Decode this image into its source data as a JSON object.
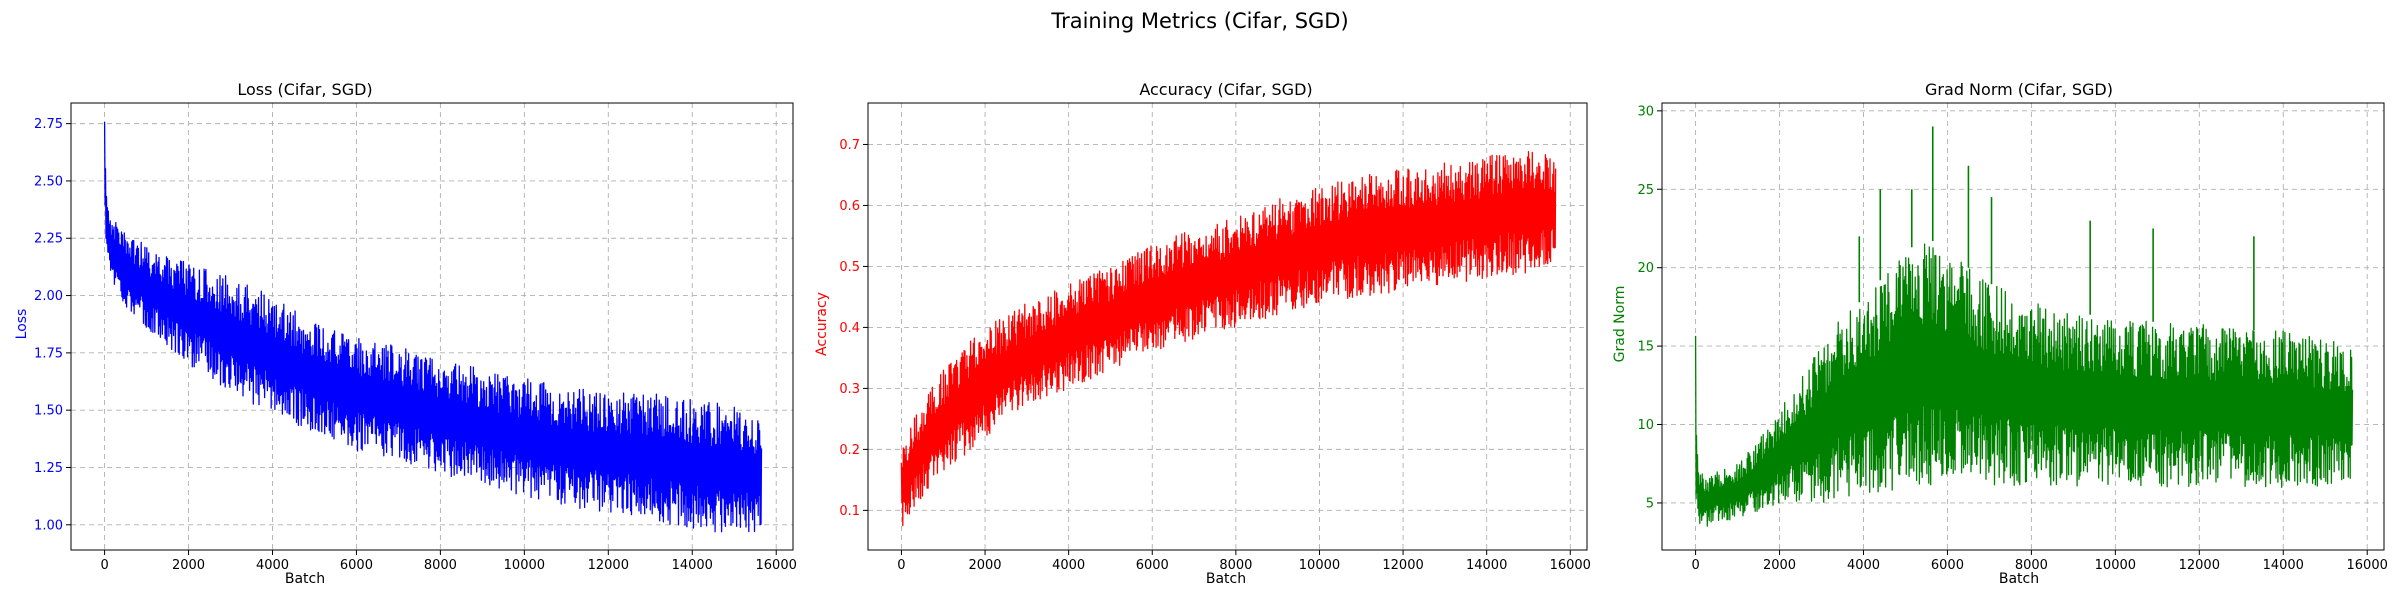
{
  "figure": {
    "suptitle": "Training Metrics (Cifar, SGD)"
  },
  "chart_data": [
    {
      "type": "line",
      "title": "Loss (Cifar, SGD)",
      "xlabel": "Batch",
      "ylabel": "Loss",
      "color": "#0000ff",
      "grid": true,
      "xlim": [
        -800,
        16400
      ],
      "ylim": [
        0.89,
        2.84
      ],
      "xticks": [
        0,
        2000,
        4000,
        6000,
        8000,
        10000,
        12000,
        14000,
        16000
      ],
      "xtick_labels": [
        "0",
        "2000",
        "4000",
        "6000",
        "8000",
        "10000",
        "12000",
        "14000",
        "16000"
      ],
      "yticks": [
        1.0,
        1.25,
        1.5,
        1.75,
        2.0,
        2.25,
        2.5,
        2.75
      ],
      "ytick_labels": [
        "1.00",
        "1.25",
        "1.50",
        "1.75",
        "2.00",
        "2.25",
        "2.50",
        "2.75"
      ],
      "series": [
        {
          "x": [
            0,
            30,
            100,
            200,
            500,
            1000,
            1500,
            2000,
            3000,
            4000,
            5000,
            6000,
            7000,
            8000,
            9000,
            10000,
            11000,
            12000,
            13000,
            14000,
            15000,
            15650
          ],
          "hi": [
            2.8,
            2.55,
            2.35,
            2.33,
            2.28,
            2.22,
            2.17,
            2.15,
            2.08,
            2.0,
            1.88,
            1.82,
            1.78,
            1.72,
            1.68,
            1.64,
            1.6,
            1.58,
            1.58,
            1.55,
            1.52,
            1.45
          ],
          "lo": [
            2.3,
            2.22,
            2.15,
            2.05,
            1.95,
            1.85,
            1.78,
            1.7,
            1.58,
            1.48,
            1.4,
            1.32,
            1.28,
            1.22,
            1.18,
            1.12,
            1.08,
            1.05,
            1.02,
            0.98,
            0.96,
            0.96
          ]
        }
      ]
    },
    {
      "type": "line",
      "title": "Accuracy (Cifar, SGD)",
      "xlabel": "Batch",
      "ylabel": "Accuracy",
      "color": "#ff0000",
      "grid": true,
      "xlim": [
        -800,
        16400
      ],
      "ylim": [
        0.035,
        0.768
      ],
      "xticks": [
        0,
        2000,
        4000,
        6000,
        8000,
        10000,
        12000,
        14000,
        16000
      ],
      "xtick_labels": [
        "0",
        "2000",
        "4000",
        "6000",
        "8000",
        "10000",
        "12000",
        "14000",
        "16000"
      ],
      "yticks": [
        0.1,
        0.2,
        0.3,
        0.4,
        0.5,
        0.6,
        0.7
      ],
      "ytick_labels": [
        "0.1",
        "0.2",
        "0.3",
        "0.4",
        "0.5",
        "0.6",
        "0.7"
      ],
      "series": [
        {
          "x": [
            0,
            100,
            300,
            500,
            1000,
            1500,
            2000,
            3000,
            4000,
            5000,
            6000,
            7000,
            8000,
            9000,
            10000,
            11000,
            12000,
            13000,
            14000,
            15000,
            15650
          ],
          "hi": [
            0.19,
            0.22,
            0.25,
            0.28,
            0.33,
            0.37,
            0.4,
            0.44,
            0.47,
            0.5,
            0.54,
            0.56,
            0.58,
            0.61,
            0.63,
            0.65,
            0.66,
            0.67,
            0.68,
            0.7,
            0.68
          ],
          "lo": [
            0.07,
            0.08,
            0.1,
            0.12,
            0.16,
            0.19,
            0.22,
            0.27,
            0.3,
            0.33,
            0.36,
            0.38,
            0.4,
            0.42,
            0.44,
            0.45,
            0.46,
            0.47,
            0.48,
            0.49,
            0.5
          ]
        }
      ]
    },
    {
      "type": "line",
      "title": "Grad Norm (Cifar, SGD)",
      "xlabel": "Batch",
      "ylabel": "Grad Norm",
      "color": "#008000",
      "grid": true,
      "xlim": [
        -800,
        16400
      ],
      "ylim": [
        2.0,
        30.5
      ],
      "xticks": [
        0,
        2000,
        4000,
        6000,
        8000,
        10000,
        12000,
        14000,
        16000
      ],
      "xtick_labels": [
        "0",
        "2000",
        "4000",
        "6000",
        "8000",
        "10000",
        "12000",
        "14000",
        "16000"
      ],
      "yticks": [
        5,
        10,
        15,
        20,
        25,
        30
      ],
      "ytick_labels": [
        "5",
        "10",
        "15",
        "20",
        "25",
        "30"
      ],
      "series": [
        {
          "x": [
            0,
            30,
            100,
            300,
            500,
            1000,
            1500,
            2000,
            2500,
            3000,
            3500,
            4000,
            4500,
            5000,
            5500,
            6000,
            7000,
            8000,
            9000,
            10000,
            11000,
            12000,
            13000,
            14000,
            15000,
            15650
          ],
          "hi": [
            17.0,
            9.0,
            7.0,
            6.5,
            7.0,
            7.5,
            9.0,
            11.0,
            13.0,
            15.0,
            17.0,
            18.0,
            19.5,
            21.0,
            22.0,
            21.0,
            19.0,
            18.0,
            17.0,
            17.0,
            16.5,
            16.5,
            16.0,
            16.0,
            15.5,
            15.0
          ],
          "lo": [
            5.0,
            4.5,
            3.5,
            3.5,
            3.8,
            4.0,
            4.5,
            5.0,
            5.0,
            5.0,
            5.2,
            5.5,
            5.8,
            5.8,
            6.0,
            6.0,
            6.0,
            6.0,
            6.0,
            6.0,
            6.0,
            6.0,
            6.0,
            6.0,
            6.0,
            6.5
          ]
        }
      ],
      "spikes": [
        {
          "x": 5650,
          "y": 29.0
        },
        {
          "x": 6500,
          "y": 26.5
        },
        {
          "x": 5150,
          "y": 25.0
        },
        {
          "x": 4400,
          "y": 25.0
        },
        {
          "x": 7050,
          "y": 24.5
        },
        {
          "x": 10900,
          "y": 22.5
        },
        {
          "x": 9400,
          "y": 23.0
        },
        {
          "x": 3900,
          "y": 22.0
        },
        {
          "x": 13300,
          "y": 22.0
        }
      ]
    }
  ]
}
